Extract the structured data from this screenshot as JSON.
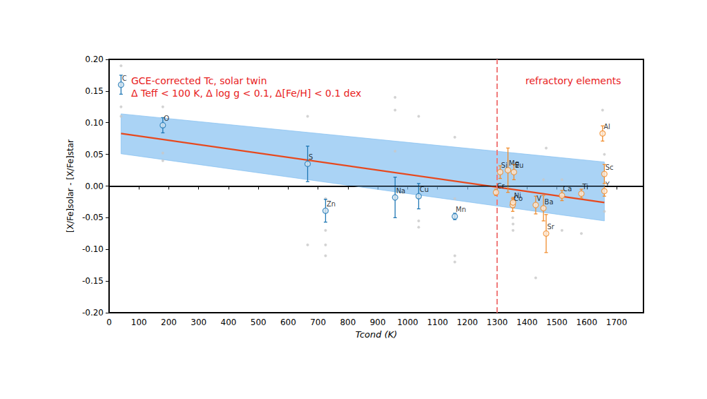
{
  "chart_data": {
    "type": "scatter",
    "x_label": "Tcond (K)",
    "y_label": "[X/Fe]solar - [X/Fe]star",
    "annotations": [
      "GCE-corrected Tc, solar twin",
      "Δ Teff < 100 K, Δ log g < 0.1, Δ[Fe/H] < 0.1 dex",
      "refractory elements"
    ],
    "xlim": [
      0,
      1790
    ],
    "xticks": [
      0,
      100,
      200,
      300,
      400,
      500,
      600,
      700,
      800,
      900,
      1000,
      1100,
      1200,
      1300,
      1400,
      1500,
      1600,
      1700
    ],
    "ylim": [
      -0.2,
      0.2
    ],
    "yticks": [
      {
        "value": -0.2,
        "label": "-0.20"
      },
      {
        "value": -0.15,
        "label": "-0.15"
      },
      {
        "value": -0.1,
        "label": "-0.10"
      },
      {
        "value": -0.05,
        "label": "-0.05"
      },
      {
        "value": 0,
        "label": "0.00"
      },
      {
        "value": 0.05,
        "label": "0.05"
      },
      {
        "value": 0.1,
        "label": "0.10"
      },
      {
        "value": 0.15,
        "label": "0.15"
      },
      {
        "value": 0.2,
        "label": "0.20"
      }
    ],
    "grid": false,
    "hlines": [
      0
    ],
    "vlines": [
      1300
    ],
    "fit": {
      "x": [
        40,
        1659
      ],
      "values": [
        0.083,
        -0.026
      ],
      "upper": [
        0.114,
        0.038
      ],
      "lower": [
        0.051,
        -0.055
      ],
      "color": "#e8481c",
      "band_color": "#7dbcf0"
    },
    "series": [
      {
        "color": "#c8c8c8",
        "marker": "circle",
        "x": [
          40,
          40,
          40,
          180,
          180,
          180,
          665,
          665,
          725,
          725,
          725,
          725,
          958,
          958,
          958,
          1037,
          1037,
          1037,
          1158,
          1158,
          1158,
          1158,
          1296,
          1336,
          1352,
          1353,
          1353,
          1429,
          1455,
          1464,
          1517,
          1517,
          1582,
          1653,
          1659,
          1659
        ],
        "values": [
          0.19,
          0.125,
          0.11,
          0.125,
          0.052,
          0.04,
          0.11,
          -0.093,
          -0.02,
          -0.07,
          -0.093,
          -0.11,
          0.14,
          0.12,
          0.055,
          0.11,
          -0.055,
          -0.065,
          0.077,
          -0.02,
          -0.12,
          -0.11,
          0.0,
          0.04,
          -0.05,
          -0.06,
          -0.07,
          -0.145,
          0.01,
          0.06,
          0.01,
          -0.07,
          -0.075,
          0.12,
          0.05,
          -0.04
        ]
      },
      {
        "color": "#1f77b4",
        "marker": "circle",
        "x": [
          40,
          180,
          665,
          725,
          958,
          1037,
          1158
        ],
        "values": [
          0.16,
          0.096,
          0.035,
          -0.039,
          -0.018,
          -0.016,
          -0.048
        ],
        "errors": [
          0.015,
          0.012,
          0.028,
          0.018,
          0.032,
          0.02,
          0.005
        ],
        "labels": [
          "C",
          "O",
          "S",
          "Zn",
          "Na",
          "Cu",
          "Mn"
        ]
      },
      {
        "color": "#f08c2c",
        "marker": "circle",
        "x": [
          1296,
          1310,
          1336,
          1356,
          1352,
          1353,
          1429,
          1455,
          1464,
          1517,
          1582,
          1653,
          1659,
          1659
        ],
        "values": [
          -0.01,
          0.022,
          0.025,
          0.022,
          -0.03,
          -0.026,
          -0.03,
          -0.035,
          -0.075,
          -0.015,
          -0.012,
          0.083,
          0.019,
          -0.008
        ],
        "errors": [
          0.005,
          0.01,
          0.035,
          0.012,
          0.01,
          0.008,
          0.014,
          0.02,
          0.03,
          0.008,
          0.007,
          0.012,
          0.015,
          0.008
        ],
        "labels": [
          "Cr",
          "Si",
          "Mg",
          "Eu",
          "Co",
          "Ni",
          "V",
          "Ba",
          "Sr",
          "Ca",
          "Ti",
          "Al",
          "Sc",
          "Y"
        ]
      }
    ]
  }
}
